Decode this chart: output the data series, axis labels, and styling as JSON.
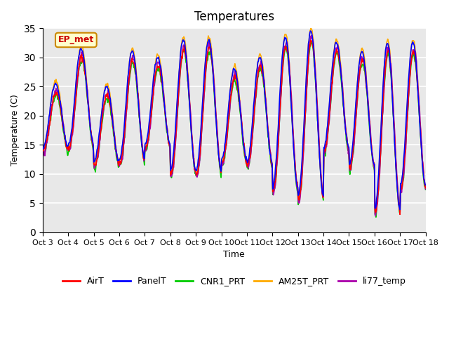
{
  "title": "Temperatures",
  "xlabel": "Time",
  "ylabel": "Temperature (C)",
  "ylim": [
    0,
    35
  ],
  "xlim": [
    0,
    15
  ],
  "background_color": "#ffffff",
  "plot_bg_color": "#e8e8e8",
  "grid_color": "#ffffff",
  "annotation_text": "EP_met",
  "annotation_bg": "#ffffcc",
  "annotation_border": "#cc8800",
  "annotation_text_color": "#cc0000",
  "series_colors": {
    "AirT": "#ff0000",
    "PanelT": "#0000ff",
    "CNR1_PRT": "#00cc00",
    "AM25T_PRT": "#ffaa00",
    "li77_temp": "#aa00aa"
  },
  "x_tick_labels": [
    "Oct 3",
    "Oct 4",
    "Oct 5",
    "Oct 6",
    "Oct 7",
    "Oct 8",
    "Oct 9",
    "Oct 10",
    "Oct 11",
    "Oct 12",
    "Oct 13",
    "Oct 14",
    "Oct 15",
    "Oct 16",
    "Oct 17",
    "Oct 18"
  ],
  "y_ticks": [
    0,
    5,
    10,
    15,
    20,
    25,
    30,
    35
  ],
  "linewidth": 1.2,
  "daily_min": [
    14,
    14.5,
    11.5,
    12,
    14.5,
    10,
    10,
    12,
    11.5,
    7,
    5.8,
    14,
    11,
    3.5,
    7.5,
    8
  ],
  "daily_max": [
    24,
    30,
    23.5,
    29.5,
    28.5,
    31.5,
    31.5,
    26.5,
    28.5,
    32,
    33,
    31,
    29.5,
    31,
    31,
    31.5
  ],
  "n_days": 15,
  "points_per_day": 48,
  "noise_scale": 0.3
}
